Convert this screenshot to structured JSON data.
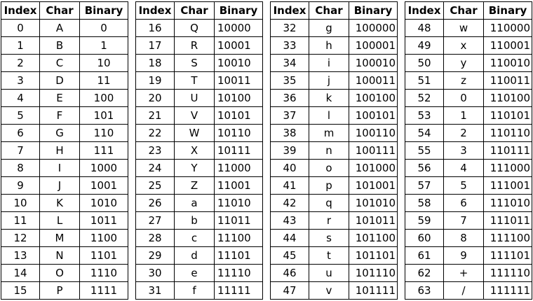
{
  "headers": [
    "Index",
    "Char",
    "Binary"
  ],
  "panels": [
    {
      "rows": [
        [
          "0",
          "A",
          "0"
        ],
        [
          "1",
          "B",
          "1"
        ],
        [
          "2",
          "C",
          "10"
        ],
        [
          "3",
          "D",
          "11"
        ],
        [
          "4",
          "E",
          "100"
        ],
        [
          "5",
          "F",
          "101"
        ],
        [
          "6",
          "G",
          "110"
        ],
        [
          "7",
          "H",
          "111"
        ],
        [
          "8",
          "I",
          "1000"
        ],
        [
          "9",
          "J",
          "1001"
        ],
        [
          "10",
          "K",
          "1010"
        ],
        [
          "11",
          "L",
          "1011"
        ],
        [
          "12",
          "M",
          "1100"
        ],
        [
          "13",
          "N",
          "1101"
        ],
        [
          "14",
          "O",
          "1110"
        ],
        [
          "15",
          "P",
          "1111"
        ]
      ]
    },
    {
      "rows": [
        [
          "16",
          "Q",
          "10000"
        ],
        [
          "17",
          "R",
          "10001"
        ],
        [
          "18",
          "S",
          "10010"
        ],
        [
          "19",
          "T",
          "10011"
        ],
        [
          "20",
          "U",
          "10100"
        ],
        [
          "21",
          "V",
          "10101"
        ],
        [
          "22",
          "W",
          "10110"
        ],
        [
          "23",
          "X",
          "10111"
        ],
        [
          "24",
          "Y",
          "11000"
        ],
        [
          "25",
          "Z",
          "11001"
        ],
        [
          "26",
          "a",
          "11010"
        ],
        [
          "27",
          "b",
          "11011"
        ],
        [
          "28",
          "c",
          "11100"
        ],
        [
          "29",
          "d",
          "11101"
        ],
        [
          "30",
          "e",
          "11110"
        ],
        [
          "31",
          "f",
          "11111"
        ]
      ]
    },
    {
      "rows": [
        [
          "32",
          "g",
          "100000"
        ],
        [
          "33",
          "h",
          "100001"
        ],
        [
          "34",
          "i",
          "100010"
        ],
        [
          "35",
          "j",
          "100011"
        ],
        [
          "36",
          "k",
          "100100"
        ],
        [
          "37",
          "l",
          "100101"
        ],
        [
          "38",
          "m",
          "100110"
        ],
        [
          "39",
          "n",
          "100111"
        ],
        [
          "40",
          "o",
          "101000"
        ],
        [
          "41",
          "p",
          "101001"
        ],
        [
          "42",
          "q",
          "101010"
        ],
        [
          "43",
          "r",
          "101011"
        ],
        [
          "44",
          "s",
          "101100"
        ],
        [
          "45",
          "t",
          "101101"
        ],
        [
          "46",
          "u",
          "101110"
        ],
        [
          "47",
          "v",
          "101111"
        ]
      ]
    },
    {
      "rows": [
        [
          "48",
          "w",
          "110000"
        ],
        [
          "49",
          "x",
          "110001"
        ],
        [
          "50",
          "y",
          "110010"
        ],
        [
          "51",
          "z",
          "110011"
        ],
        [
          "52",
          "0",
          "110100"
        ],
        [
          "53",
          "1",
          "110101"
        ],
        [
          "54",
          "2",
          "110110"
        ],
        [
          "55",
          "3",
          "110111"
        ],
        [
          "56",
          "4",
          "111000"
        ],
        [
          "57",
          "5",
          "111001"
        ],
        [
          "58",
          "6",
          "111010"
        ],
        [
          "59",
          "7",
          "111011"
        ],
        [
          "60",
          "8",
          "111100"
        ],
        [
          "61",
          "9",
          "111101"
        ],
        [
          "62",
          "+",
          "111110"
        ],
        [
          "63",
          "/",
          "111111"
        ]
      ]
    }
  ]
}
